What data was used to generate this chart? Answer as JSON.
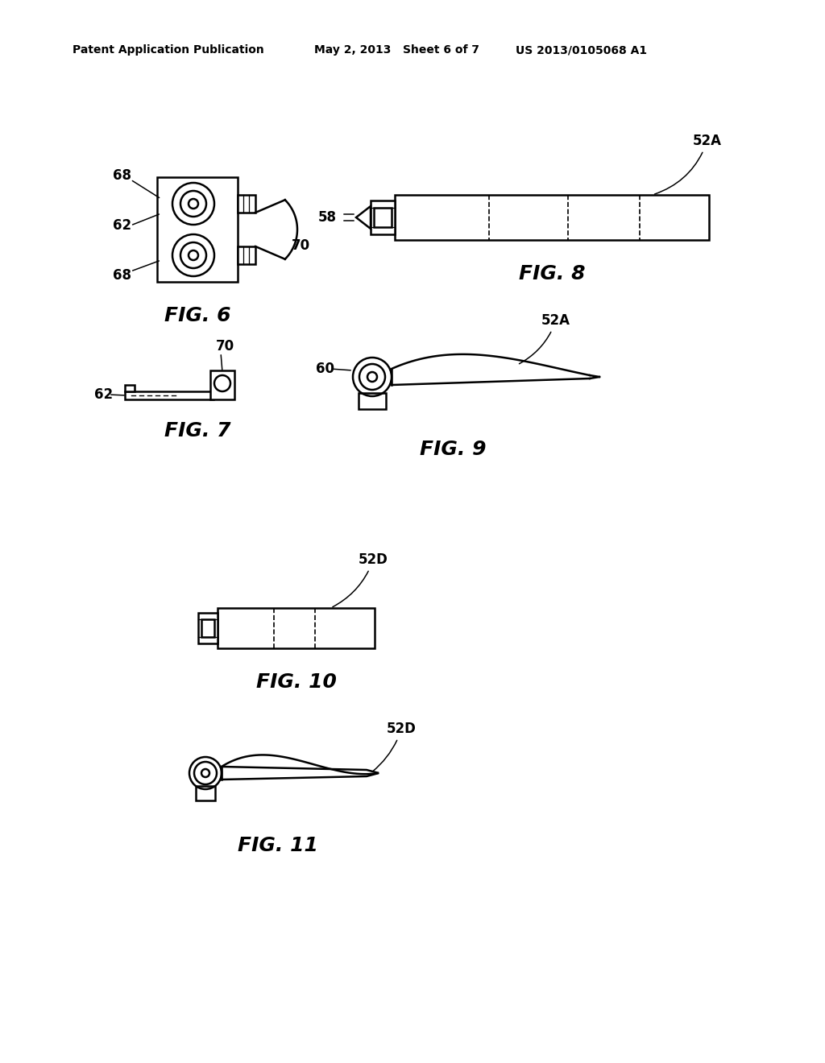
{
  "bg_color": "#ffffff",
  "line_color": "#000000",
  "header_left": "Patent Application Publication",
  "header_mid": "May 2, 2013   Sheet 6 of 7",
  "header_right": "US 2013/0105068 A1",
  "fig6_label": "FIG. 6",
  "fig7_label": "FIG. 7",
  "fig8_label": "FIG. 8",
  "fig9_label": "FIG. 9",
  "fig10_label": "FIG. 10",
  "fig11_label": "FIG. 11",
  "label_fontsize": 12,
  "figlabel_fontsize": 18,
  "header_fontsize": 10,
  "lw": 1.8
}
